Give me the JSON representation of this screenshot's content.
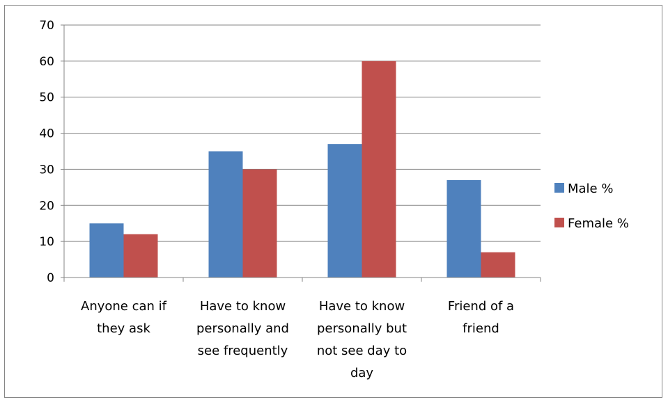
{
  "chart_data": {
    "type": "bar",
    "categories": [
      [
        "Anyone can if",
        "they ask"
      ],
      [
        "Have to know",
        "personally and",
        "see frequently"
      ],
      [
        "Have to know",
        "personally but",
        "not see day to",
        "day"
      ],
      [
        "Friend of a",
        "friend"
      ]
    ],
    "series": [
      {
        "name": "Male %",
        "color": "#4f81bd",
        "values": [
          15,
          35,
          37,
          27
        ]
      },
      {
        "name": "Female %",
        "color": "#c0504d",
        "values": [
          12,
          30,
          60,
          7
        ]
      }
    ],
    "ylim": [
      0,
      70
    ],
    "yticks": [
      0,
      10,
      20,
      30,
      40,
      50,
      60,
      70
    ],
    "grid": true,
    "legend": "right",
    "title": "",
    "xlabel": "",
    "ylabel": ""
  }
}
